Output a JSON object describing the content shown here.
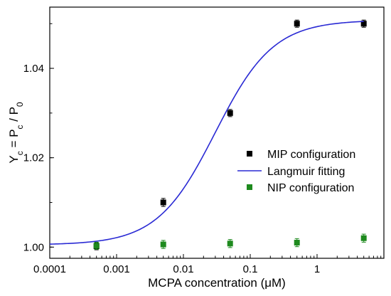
{
  "chart_data": {
    "type": "scatter",
    "title": "",
    "xlabel": "MCPA concentration (μM)",
    "ylabel": {
      "parts": [
        {
          "text": "Y",
          "sub": false
        },
        {
          "text": "c",
          "sub": true
        },
        {
          "text": " = P",
          "sub": false
        },
        {
          "text": "c",
          "sub": true
        },
        {
          "text": " / P",
          "sub": false
        },
        {
          "text": "0",
          "sub": true
        }
      ]
    },
    "x_scale": "log",
    "xlim": [
      0.0001,
      10
    ],
    "ylim": [
      0.9975,
      1.0537
    ],
    "x_ticks": [
      {
        "value": 0.0001,
        "label": "0.0001"
      },
      {
        "value": 0.001,
        "label": "0.001"
      },
      {
        "value": 0.01,
        "label": "0.01"
      },
      {
        "value": 0.1,
        "label": "0.1"
      },
      {
        "value": 1,
        "label": "1"
      }
    ],
    "y_ticks": [
      {
        "value": 1.0,
        "label": "1.00"
      },
      {
        "value": 1.02,
        "label": "1.02"
      },
      {
        "value": 1.04,
        "label": "1.04"
      }
    ],
    "grid": false,
    "legend_position": "center-right",
    "series": [
      {
        "name": "MIP configuration",
        "kind": "points",
        "color": "#000000",
        "x": [
          0.0005,
          0.005,
          0.05,
          0.5,
          5
        ],
        "y": [
          1.0002,
          1.01,
          1.03,
          1.05,
          1.05
        ],
        "yerr": [
          0.0008,
          0.0009,
          0.0008,
          0.0008,
          0.0008
        ]
      },
      {
        "name": "Langmuir fitting",
        "kind": "line",
        "color": "#2a2ad4",
        "model": {
          "y0": 1.0005,
          "amplitude": 0.0503,
          "x_half": 0.03,
          "n": 1.0
        },
        "x_range": [
          0.0001,
          5
        ]
      },
      {
        "name": "NIP configuration",
        "kind": "points",
        "color": "#1e8a1e",
        "x": [
          0.0005,
          0.005,
          0.05,
          0.5,
          5
        ],
        "y": [
          1.0003,
          1.0006,
          1.0008,
          1.001,
          1.002
        ],
        "yerr": [
          0.0008,
          0.0009,
          0.0009,
          0.0009,
          0.0009
        ]
      }
    ]
  }
}
